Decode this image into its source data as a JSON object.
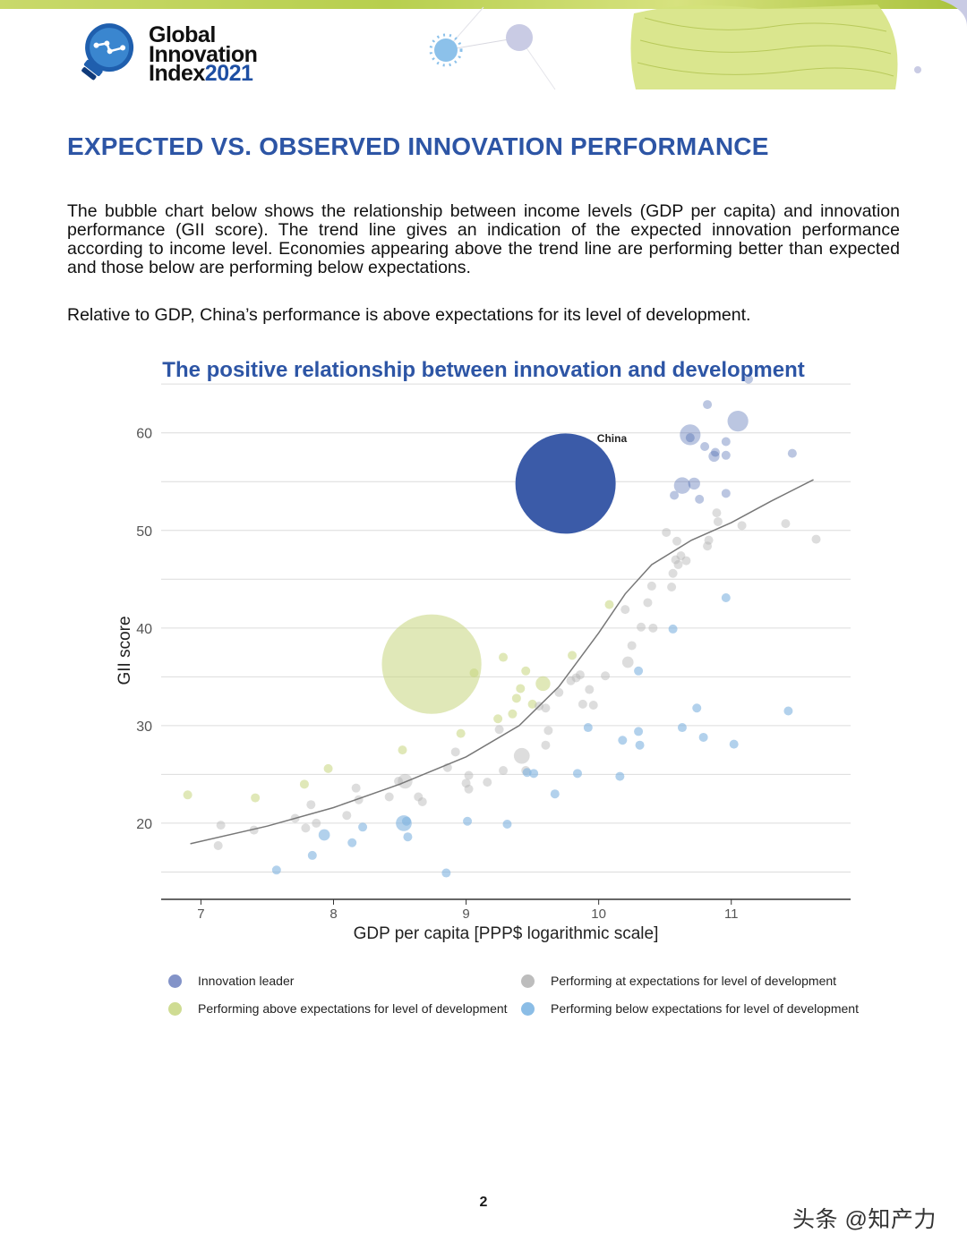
{
  "header": {
    "logo_line1": "Global",
    "logo_line2": "Innovation",
    "logo_line3_word": "Index",
    "logo_line3_year": "2021"
  },
  "headline": "EXPECTED VS. OBSERVED INNOVATION PERFORMANCE",
  "paragraphs": {
    "p1": "The bubble chart below shows the relationship between income levels (GDP per capita) and innovation performance (GII score). The trend line gives an indication of the expected innovation performance according to income level.  Economies appearing above the trend line are performing better than expected and those below are performing below expectations.",
    "p2": "Relative to GDP, China’s performance is above expectations for its level of development."
  },
  "chart_title": "The positive relationship between innovation and development",
  "colors": {
    "leader": "#3b5ba8",
    "above": "#c6d67e",
    "at": "#b3b3b3",
    "below": "#7fb3e0",
    "accent": "#2d55a5",
    "trend": "#777777"
  },
  "chart_data": {
    "type": "scatter",
    "title": "The positive relationship between innovation and development",
    "xlabel": "GDP per capita [PPP$ logarithmic scale]",
    "ylabel": "GII score",
    "xlim": [
      6.7,
      11.9
    ],
    "ylim": [
      12.2,
      65.2
    ],
    "xticks": [
      7,
      8,
      9,
      10,
      11
    ],
    "yticks": [
      20,
      30,
      40,
      50,
      60
    ],
    "grid": "horizontal",
    "annotations": [
      {
        "label": "China",
        "x": 10.1,
        "y": 59.5
      }
    ],
    "legend": [
      {
        "key": "leader",
        "label": "Innovation leader"
      },
      {
        "key": "at",
        "label": "Performing at expectations for level of development"
      },
      {
        "key": "above",
        "label": "Performing above expectations for level of development"
      },
      {
        "key": "below",
        "label": "Performing below expectations for level of development"
      }
    ],
    "trend_line": [
      [
        6.92,
        17.9
      ],
      [
        7.5,
        19.7
      ],
      [
        8.0,
        21.6
      ],
      [
        8.5,
        24.0
      ],
      [
        9.0,
        26.8
      ],
      [
        9.4,
        30.0
      ],
      [
        9.7,
        34.0
      ],
      [
        10.0,
        39.5
      ],
      [
        10.2,
        43.5
      ],
      [
        10.4,
        46.5
      ],
      [
        10.7,
        49.0
      ],
      [
        11.0,
        50.8
      ],
      [
        11.3,
        53.0
      ],
      [
        11.62,
        55.2
      ]
    ],
    "series": [
      {
        "name": "Innovation leader",
        "category": "leader",
        "points": [
          {
            "x": 9.75,
            "y": 54.8,
            "size": 1400000000
          },
          {
            "x": 10.69,
            "y": 59.8,
            "size": 60000000
          },
          {
            "x": 10.69,
            "y": 59.5,
            "size": 8000000
          },
          {
            "x": 10.82,
            "y": 62.9,
            "size": 5000000
          },
          {
            "x": 11.13,
            "y": 65.5,
            "size": 5000000
          },
          {
            "x": 11.05,
            "y": 61.2,
            "size": 60000000
          },
          {
            "x": 10.88,
            "y": 58.0,
            "size": 10000000
          },
          {
            "x": 10.96,
            "y": 59.1,
            "size": 5000000
          },
          {
            "x": 10.8,
            "y": 58.6,
            "size": 5000000
          },
          {
            "x": 10.87,
            "y": 57.6,
            "size": 17000000
          },
          {
            "x": 10.96,
            "y": 57.7,
            "size": 5000000
          },
          {
            "x": 11.46,
            "y": 57.9,
            "size": 5000000
          },
          {
            "x": 10.63,
            "y": 54.6,
            "size": 38000000
          },
          {
            "x": 10.72,
            "y": 54.8,
            "size": 20000000
          },
          {
            "x": 10.57,
            "y": 53.6,
            "size": 5000000
          },
          {
            "x": 10.76,
            "y": 53.2,
            "size": 9000000
          },
          {
            "x": 10.96,
            "y": 53.8,
            "size": 5000000
          }
        ]
      },
      {
        "name": "Performing above expectations for level of development",
        "category": "above",
        "points": [
          {
            "x": 6.9,
            "y": 22.9,
            "size": 5000000
          },
          {
            "x": 7.41,
            "y": 22.6,
            "size": 5000000
          },
          {
            "x": 7.78,
            "y": 24.0,
            "size": 5000000
          },
          {
            "x": 7.96,
            "y": 25.6,
            "size": 8000000
          },
          {
            "x": 8.52,
            "y": 27.5,
            "size": 8000000
          },
          {
            "x": 8.74,
            "y": 36.3,
            "size": 1380000000
          },
          {
            "x": 9.06,
            "y": 35.4,
            "size": 11000000
          },
          {
            "x": 8.96,
            "y": 29.2,
            "size": 5000000
          },
          {
            "x": 9.28,
            "y": 37.0,
            "size": 10000000
          },
          {
            "x": 9.45,
            "y": 35.6,
            "size": 6000000
          },
          {
            "x": 9.58,
            "y": 34.3,
            "size": 30000000
          },
          {
            "x": 9.8,
            "y": 37.2,
            "size": 9000000
          },
          {
            "x": 9.38,
            "y": 32.8,
            "size": 8000000
          },
          {
            "x": 9.41,
            "y": 33.8,
            "size": 5000000
          },
          {
            "x": 9.5,
            "y": 32.2,
            "size": 5000000
          },
          {
            "x": 9.24,
            "y": 30.7,
            "size": 5000000
          },
          {
            "x": 9.35,
            "y": 31.2,
            "size": 5000000
          },
          {
            "x": 10.08,
            "y": 42.4,
            "size": 5000000
          }
        ]
      },
      {
        "name": "Performing at expectations for level of development",
        "category": "at",
        "points": [
          {
            "x": 7.15,
            "y": 19.8,
            "size": 5000000
          },
          {
            "x": 7.13,
            "y": 17.7,
            "size": 5000000
          },
          {
            "x": 7.4,
            "y": 19.3,
            "size": 5000000
          },
          {
            "x": 7.71,
            "y": 20.5,
            "size": 5000000
          },
          {
            "x": 7.83,
            "y": 21.9,
            "size": 5000000
          },
          {
            "x": 7.79,
            "y": 19.5,
            "size": 5000000
          },
          {
            "x": 7.87,
            "y": 20.0,
            "size": 5000000
          },
          {
            "x": 8.1,
            "y": 20.8,
            "size": 5000000
          },
          {
            "x": 8.17,
            "y": 23.6,
            "size": 5000000
          },
          {
            "x": 8.19,
            "y": 22.4,
            "size": 5000000
          },
          {
            "x": 8.42,
            "y": 22.7,
            "size": 5000000
          },
          {
            "x": 8.49,
            "y": 24.3,
            "size": 5000000
          },
          {
            "x": 8.54,
            "y": 24.3,
            "size": 30000000
          },
          {
            "x": 8.64,
            "y": 22.7,
            "size": 5000000
          },
          {
            "x": 8.67,
            "y": 22.2,
            "size": 5000000
          },
          {
            "x": 8.92,
            "y": 27.3,
            "size": 5000000
          },
          {
            "x": 8.86,
            "y": 25.7,
            "size": 5000000
          },
          {
            "x": 9.0,
            "y": 24.1,
            "size": 5000000
          },
          {
            "x": 9.02,
            "y": 24.9,
            "size": 5000000
          },
          {
            "x": 9.02,
            "y": 23.5,
            "size": 5000000
          },
          {
            "x": 9.16,
            "y": 24.2,
            "size": 5000000
          },
          {
            "x": 9.25,
            "y": 29.6,
            "size": 5000000
          },
          {
            "x": 9.28,
            "y": 25.4,
            "size": 5000000
          },
          {
            "x": 9.42,
            "y": 26.9,
            "size": 35000000
          },
          {
            "x": 9.45,
            "y": 25.4,
            "size": 10000000
          },
          {
            "x": 9.55,
            "y": 32.0,
            "size": 8000000
          },
          {
            "x": 9.6,
            "y": 31.8,
            "size": 5000000
          },
          {
            "x": 9.62,
            "y": 29.5,
            "size": 5000000
          },
          {
            "x": 9.6,
            "y": 28.0,
            "size": 5000000
          },
          {
            "x": 9.7,
            "y": 33.4,
            "size": 5000000
          },
          {
            "x": 9.79,
            "y": 34.6,
            "size": 5000000
          },
          {
            "x": 9.83,
            "y": 34.9,
            "size": 6000000
          },
          {
            "x": 9.86,
            "y": 35.2,
            "size": 5000000
          },
          {
            "x": 9.88,
            "y": 32.2,
            "size": 5000000
          },
          {
            "x": 9.96,
            "y": 32.1,
            "size": 5000000
          },
          {
            "x": 9.93,
            "y": 33.7,
            "size": 5000000
          },
          {
            "x": 10.05,
            "y": 35.1,
            "size": 5000000
          },
          {
            "x": 10.22,
            "y": 36.5,
            "size": 18000000
          },
          {
            "x": 10.25,
            "y": 38.2,
            "size": 10000000
          },
          {
            "x": 10.2,
            "y": 41.9,
            "size": 5000000
          },
          {
            "x": 10.32,
            "y": 40.1,
            "size": 5000000
          },
          {
            "x": 10.37,
            "y": 42.6,
            "size": 5000000
          },
          {
            "x": 10.41,
            "y": 40.0,
            "size": 5000000
          },
          {
            "x": 10.4,
            "y": 44.3,
            "size": 5000000
          },
          {
            "x": 10.51,
            "y": 49.8,
            "size": 5000000
          },
          {
            "x": 10.59,
            "y": 48.9,
            "size": 5000000
          },
          {
            "x": 10.58,
            "y": 47.0,
            "size": 5000000
          },
          {
            "x": 10.62,
            "y": 47.4,
            "size": 5000000
          },
          {
            "x": 10.6,
            "y": 46.5,
            "size": 5000000
          },
          {
            "x": 10.56,
            "y": 45.6,
            "size": 5000000
          },
          {
            "x": 10.55,
            "y": 44.2,
            "size": 5000000
          },
          {
            "x": 10.66,
            "y": 46.9,
            "size": 5000000
          },
          {
            "x": 10.82,
            "y": 48.4,
            "size": 5000000
          },
          {
            "x": 10.89,
            "y": 51.8,
            "size": 5000000
          },
          {
            "x": 10.9,
            "y": 50.9,
            "size": 5000000
          },
          {
            "x": 10.83,
            "y": 49.0,
            "size": 5000000
          },
          {
            "x": 11.41,
            "y": 50.7,
            "size": 5000000
          },
          {
            "x": 11.64,
            "y": 49.1,
            "size": 5000000
          },
          {
            "x": 11.08,
            "y": 50.5,
            "size": 5000000
          }
        ]
      },
      {
        "name": "Performing below expectations for level of development",
        "category": "below",
        "points": [
          {
            "x": 7.57,
            "y": 15.2,
            "size": 5000000
          },
          {
            "x": 7.84,
            "y": 16.7,
            "size": 5000000
          },
          {
            "x": 7.93,
            "y": 18.8,
            "size": 18000000
          },
          {
            "x": 8.14,
            "y": 18.0,
            "size": 5000000
          },
          {
            "x": 8.22,
            "y": 19.6,
            "size": 5000000
          },
          {
            "x": 8.53,
            "y": 20.0,
            "size": 35000000
          },
          {
            "x": 8.55,
            "y": 20.2,
            "size": 8000000
          },
          {
            "x": 8.56,
            "y": 18.6,
            "size": 8000000
          },
          {
            "x": 8.85,
            "y": 14.9,
            "size": 5000000
          },
          {
            "x": 9.01,
            "y": 20.2,
            "size": 5000000
          },
          {
            "x": 9.31,
            "y": 19.9,
            "size": 6000000
          },
          {
            "x": 9.46,
            "y": 25.2,
            "size": 5000000
          },
          {
            "x": 9.51,
            "y": 25.1,
            "size": 8000000
          },
          {
            "x": 9.67,
            "y": 23.0,
            "size": 5000000
          },
          {
            "x": 9.84,
            "y": 25.1,
            "size": 5000000
          },
          {
            "x": 9.92,
            "y": 29.8,
            "size": 6000000
          },
          {
            "x": 10.16,
            "y": 24.8,
            "size": 5000000
          },
          {
            "x": 10.18,
            "y": 28.5,
            "size": 5000000
          },
          {
            "x": 10.3,
            "y": 29.4,
            "size": 5000000
          },
          {
            "x": 10.31,
            "y": 28.0,
            "size": 5000000
          },
          {
            "x": 10.3,
            "y": 35.6,
            "size": 5000000
          },
          {
            "x": 10.56,
            "y": 39.9,
            "size": 5000000
          },
          {
            "x": 10.63,
            "y": 29.8,
            "size": 5000000
          },
          {
            "x": 10.74,
            "y": 31.8,
            "size": 5000000
          },
          {
            "x": 10.79,
            "y": 28.8,
            "size": 5000000
          },
          {
            "x": 10.96,
            "y": 43.1,
            "size": 5000000
          },
          {
            "x": 11.02,
            "y": 28.1,
            "size": 5000000
          },
          {
            "x": 11.43,
            "y": 31.5,
            "size": 5000000
          }
        ]
      }
    ]
  },
  "legend": {
    "leader": "Innovation leader",
    "at": "Performing at expectations for level of development",
    "above": "Performing above expectations for level of development",
    "below": "Performing below expectations for level of development"
  },
  "page_number": "2",
  "watermark": "头条 @知产力"
}
